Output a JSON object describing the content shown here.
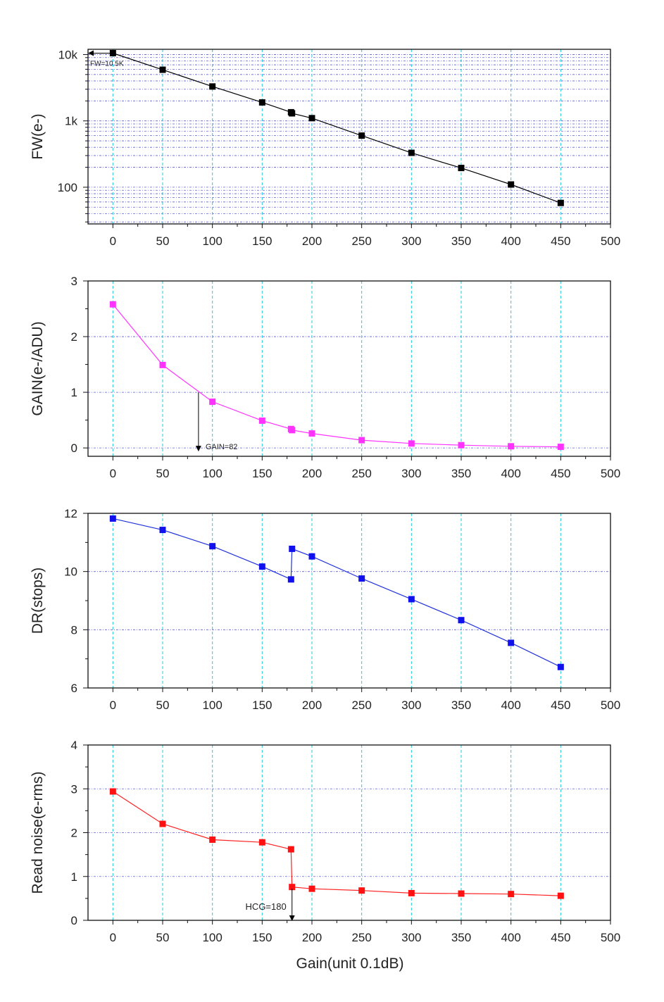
{
  "x_label": "Gain(unit 0.1dB)",
  "chart_data": [
    {
      "type": "line",
      "ylabel": "FW(e-)",
      "yscale": "log",
      "xlim": [
        -25,
        500
      ],
      "ylim": [
        28,
        12000
      ],
      "x_ticks": [
        "0",
        "50",
        "100",
        "150",
        "200",
        "250",
        "300",
        "350",
        "400",
        "450",
        "500"
      ],
      "y_ticks": [
        {
          "value": 10000,
          "label": "10k"
        },
        {
          "value": 1000,
          "label": "1k"
        },
        {
          "value": 100,
          "label": "100"
        }
      ],
      "color": "#000000",
      "marker_color": "#000000",
      "series": [
        {
          "x": [
            0,
            50,
            100,
            150,
            179,
            180,
            200,
            250,
            300,
            350,
            400,
            450
          ],
          "values": [
            10500,
            5900,
            3300,
            1900,
            1350,
            1300,
            1100,
            600,
            330,
            195,
            110,
            58
          ]
        }
      ],
      "annotations": [
        {
          "text": "FW=10.5K",
          "arrow": "left",
          "x": 0,
          "y": 10500
        }
      ],
      "grid": true
    },
    {
      "type": "line",
      "ylabel": "GAIN(e-/ADU)",
      "yscale": "linear",
      "xlim": [
        -25,
        500
      ],
      "ylim": [
        -0.15,
        3
      ],
      "x_ticks": [
        "0",
        "50",
        "100",
        "150",
        "200",
        "250",
        "300",
        "350",
        "400",
        "450",
        "500"
      ],
      "y_ticks": [
        {
          "value": 0,
          "label": "0"
        },
        {
          "value": 1,
          "label": "1"
        },
        {
          "value": 2,
          "label": "2"
        },
        {
          "value": 3,
          "label": "3"
        }
      ],
      "color": "#ff33ff",
      "marker_color": "#ff33ff",
      "series": [
        {
          "x": [
            0,
            50,
            100,
            150,
            179,
            180,
            200,
            250,
            300,
            350,
            400,
            450
          ],
          "values": [
            2.58,
            1.49,
            0.83,
            0.49,
            0.34,
            0.32,
            0.26,
            0.14,
            0.08,
            0.05,
            0.03,
            0.02
          ]
        }
      ],
      "annotations": [
        {
          "text": "GAIN=82",
          "arrow": "down",
          "x": 86,
          "y_from": 1.0,
          "y_to": -0.05
        }
      ],
      "grid": true
    },
    {
      "type": "line",
      "ylabel": "DR(stops)",
      "yscale": "linear",
      "xlim": [
        -25,
        500
      ],
      "ylim": [
        6,
        12
      ],
      "x_ticks": [
        "0",
        "50",
        "100",
        "150",
        "200",
        "250",
        "300",
        "350",
        "400",
        "450",
        "500"
      ],
      "y_ticks": [
        {
          "value": 6,
          "label": "6"
        },
        {
          "value": 8,
          "label": "8"
        },
        {
          "value": 10,
          "label": "10"
        },
        {
          "value": 12,
          "label": "12"
        }
      ],
      "color": "#2233dd",
      "marker_color": "#1111ee",
      "series": [
        {
          "x": [
            0,
            50,
            100,
            150,
            179,
            180,
            200,
            250,
            300,
            350,
            400,
            450
          ],
          "values": [
            11.82,
            11.43,
            10.87,
            10.17,
            9.73,
            10.78,
            10.52,
            9.76,
            9.05,
            8.33,
            7.55,
            6.72
          ]
        }
      ],
      "annotations": [],
      "grid": true
    },
    {
      "type": "line",
      "ylabel": "Read noise(e-rms)",
      "yscale": "linear",
      "xlim": [
        -25,
        500
      ],
      "ylim": [
        0,
        4
      ],
      "x_ticks": [
        "0",
        "50",
        "100",
        "150",
        "200",
        "250",
        "300",
        "350",
        "400",
        "450",
        "500"
      ],
      "y_ticks": [
        {
          "value": 0,
          "label": "0"
        },
        {
          "value": 1,
          "label": "1"
        },
        {
          "value": 2,
          "label": "2"
        },
        {
          "value": 3,
          "label": "3"
        },
        {
          "value": 4,
          "label": "4"
        }
      ],
      "color": "#ff2222",
      "marker_color": "#ff1111",
      "series": [
        {
          "x": [
            0,
            50,
            100,
            150,
            179,
            180,
            200,
            250,
            300,
            350,
            400,
            450
          ],
          "values": [
            2.94,
            2.2,
            1.84,
            1.78,
            1.62,
            0.76,
            0.72,
            0.68,
            0.62,
            0.61,
            0.6,
            0.56
          ]
        }
      ],
      "annotations": [
        {
          "text": "HCG=180",
          "arrow": "down",
          "x": 180,
          "y_from": 0.72,
          "y_to": 0
        }
      ],
      "grid": true
    }
  ]
}
